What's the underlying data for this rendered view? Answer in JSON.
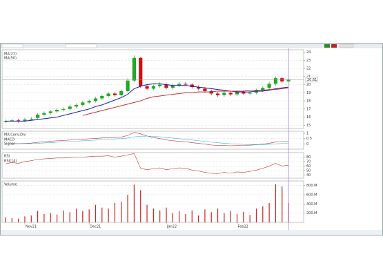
{
  "chart_data": [
    {
      "type": "candlestick",
      "open": [
        15.4,
        15.5,
        15.6,
        15.5,
        15.7,
        15.9,
        16.3,
        16.5,
        16.7,
        16.9,
        17.0,
        17.3,
        17.5,
        17.8,
        18.0,
        18.3,
        18.6,
        18.9,
        18.7,
        19.2,
        20.5,
        23.3,
        19.8,
        19.5,
        19.8,
        20.0,
        19.6,
        19.9,
        20.1,
        20.0,
        19.7,
        19.5,
        19.2,
        18.9,
        18.7,
        19.0,
        18.8,
        19.1,
        18.9,
        19.0,
        19.3,
        19.6,
        20.1,
        20.8,
        20.4
      ],
      "high": [
        15.7,
        15.8,
        15.8,
        15.9,
        16.0,
        16.5,
        16.7,
        16.9,
        17.1,
        17.2,
        17.5,
        17.7,
        18.0,
        18.2,
        18.5,
        18.8,
        19.1,
        19.1,
        19.4,
        20.8,
        23.6,
        23.4,
        20.1,
        20.0,
        20.3,
        20.2,
        20.1,
        20.3,
        20.3,
        20.2,
        19.9,
        19.7,
        19.4,
        19.1,
        19.2,
        19.2,
        19.3,
        19.3,
        19.2,
        19.5,
        19.8,
        20.4,
        21.0,
        20.9,
        20.8
      ],
      "low": [
        15.3,
        15.4,
        15.3,
        15.4,
        15.6,
        15.7,
        16.1,
        16.3,
        16.5,
        16.7,
        16.8,
        17.1,
        17.3,
        17.6,
        17.8,
        18.1,
        18.4,
        18.5,
        18.5,
        19.0,
        20.3,
        19.6,
        19.3,
        19.3,
        19.6,
        19.4,
        19.4,
        19.7,
        19.8,
        19.5,
        19.3,
        19.0,
        18.7,
        18.5,
        18.5,
        18.6,
        18.6,
        18.7,
        18.7,
        18.8,
        19.1,
        19.4,
        19.9,
        20.2,
        20.2
      ],
      "close": [
        15.5,
        15.6,
        15.5,
        15.7,
        15.8,
        16.3,
        16.5,
        16.7,
        16.9,
        17.0,
        17.3,
        17.5,
        17.8,
        18.0,
        18.3,
        18.6,
        18.9,
        18.7,
        19.2,
        20.5,
        23.3,
        19.8,
        19.5,
        19.8,
        20.0,
        19.6,
        19.9,
        20.1,
        20.0,
        19.7,
        19.5,
        19.2,
        18.9,
        18.7,
        19.0,
        18.8,
        19.1,
        18.9,
        19.0,
        19.3,
        19.6,
        20.1,
        20.8,
        20.4,
        20.61
      ],
      "up_color": "#22aa22",
      "down_color": "#cc1111",
      "series": [
        {
          "name": "MA(21)",
          "color": "#1515b0",
          "values": [
            15.5,
            15.5,
            15.5,
            15.5,
            15.6,
            15.7,
            15.8,
            15.9,
            16.0,
            16.2,
            16.4,
            16.6,
            16.8,
            17.0,
            17.3,
            17.5,
            17.8,
            18.1,
            18.4,
            18.8,
            19.5,
            19.8,
            20.0,
            20.1,
            20.1,
            20.0,
            19.9,
            19.9,
            19.9,
            19.8,
            19.7,
            19.6,
            19.5,
            19.4,
            19.3,
            19.2,
            19.1,
            19.1,
            19.1,
            19.2,
            19.2,
            19.3,
            19.5,
            19.6,
            19.7
          ]
        },
        {
          "name": "MA(50)",
          "color": "#c03030",
          "values": [
            null,
            null,
            null,
            null,
            null,
            null,
            null,
            null,
            null,
            null,
            null,
            null,
            16.2,
            16.4,
            16.6,
            16.8,
            17.0,
            17.2,
            17.4,
            17.6,
            17.8,
            18.0,
            18.3,
            18.5,
            18.6,
            18.7,
            18.8,
            18.9,
            19.0,
            19.0,
            19.1,
            19.1,
            19.1,
            19.2,
            19.2,
            19.2,
            19.2,
            19.2,
            19.3,
            19.3,
            19.3,
            19.4,
            19.4,
            19.5,
            19.6
          ]
        }
      ],
      "last_value": 20.61,
      "ylim": [
        14.6,
        24.3
      ],
      "yticks": [
        15,
        16,
        17,
        18,
        19,
        20,
        21,
        22,
        23,
        24
      ],
      "grid": true,
      "xticks": [
        {
          "value": 3,
          "label": "Nov21"
        },
        {
          "value": 13,
          "label": "Dec21"
        },
        {
          "value": 25,
          "label": "Jan22"
        },
        {
          "value": 36,
          "label": "Feb22"
        }
      ]
    },
    {
      "type": "line",
      "title": "MA.Conv.Div",
      "series": [
        {
          "name": "MACD",
          "color": "#c03030",
          "values": [
            0,
            0.02,
            0.03,
            0.05,
            0.08,
            0.15,
            0.2,
            0.25,
            0.3,
            0.33,
            0.36,
            0.4,
            0.45,
            0.48,
            0.52,
            0.56,
            0.6,
            0.6,
            0.65,
            0.8,
            1.1,
            0.95,
            0.75,
            0.6,
            0.5,
            0.38,
            0.3,
            0.25,
            0.2,
            0.12,
            0.05,
            -0.02,
            -0.1,
            -0.15,
            -0.15,
            -0.18,
            -0.15,
            -0.14,
            -0.12,
            -0.08,
            -0.02,
            0.06,
            0.18,
            0.22,
            0.26
          ]
        },
        {
          "name": "Signal",
          "color": "#30b8d8",
          "values": [
            0,
            0.01,
            0.02,
            0.03,
            0.04,
            0.06,
            0.09,
            0.12,
            0.16,
            0.19,
            0.22,
            0.26,
            0.29,
            0.33,
            0.36,
            0.4,
            0.44,
            0.47,
            0.5,
            0.56,
            0.67,
            0.73,
            0.74,
            0.71,
            0.67,
            0.61,
            0.55,
            0.49,
            0.43,
            0.37,
            0.3,
            0.24,
            0.17,
            0.11,
            0.06,
            0.01,
            -0.02,
            -0.05,
            -0.06,
            -0.07,
            -0.06,
            -0.04,
            0,
            0.04,
            0.08
          ]
        }
      ],
      "ylim": [
        -0.5,
        1.2
      ],
      "yticks": [
        0,
        0.5,
        1
      ],
      "grid": true
    },
    {
      "type": "line",
      "title": "RSI",
      "series": [
        {
          "name": "RSI(14)",
          "color": "#c03030",
          "values": [
            65,
            68,
            66,
            70,
            72,
            75,
            76,
            77,
            78,
            78,
            79,
            80,
            80,
            81,
            82,
            82,
            83,
            80,
            82,
            85,
            88,
            55,
            52,
            54,
            56,
            52,
            54,
            56,
            55,
            51,
            49,
            46,
            44,
            43,
            46,
            44,
            47,
            46,
            48,
            51,
            55,
            60,
            66,
            60,
            62
          ]
        }
      ],
      "ylim": [
        33,
        90
      ],
      "yticks": [
        40,
        50,
        60,
        70,
        80
      ],
      "grid": true
    },
    {
      "type": "bar",
      "title": "Volume",
      "series": [
        {
          "name": "Vol",
          "color": "#cc2222",
          "values": [
            110000000,
            90000000,
            80000000,
            130000000,
            150000000,
            250000000,
            180000000,
            200000000,
            170000000,
            260000000,
            220000000,
            300000000,
            250000000,
            280000000,
            380000000,
            320000000,
            300000000,
            420000000,
            450000000,
            600000000,
            820000000,
            700000000,
            380000000,
            300000000,
            260000000,
            320000000,
            200000000,
            240000000,
            180000000,
            260000000,
            150000000,
            280000000,
            220000000,
            300000000,
            200000000,
            250000000,
            180000000,
            230000000,
            160000000,
            300000000,
            350000000,
            420000000,
            830000000,
            780000000,
            420000000
          ]
        }
      ],
      "ylim": [
        0,
        900000000
      ],
      "yticks": [
        {
          "value": 200000000,
          "label": "200.M"
        },
        {
          "value": 400000000,
          "label": "400.M"
        },
        {
          "value": 600000000,
          "label": "600.M"
        },
        {
          "value": 800000000,
          "label": "800.M"
        }
      ],
      "grid": true
    }
  ]
}
